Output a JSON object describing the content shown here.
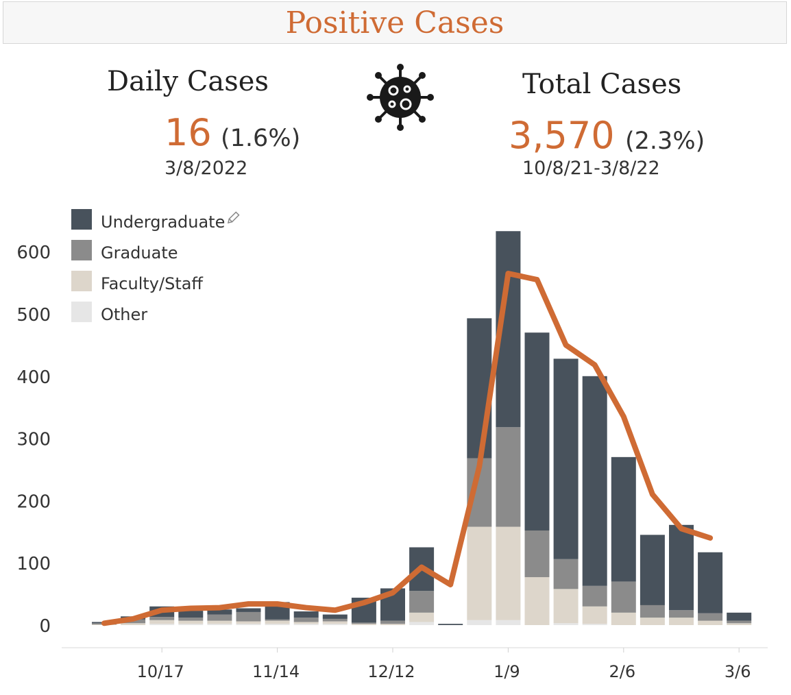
{
  "header": {
    "title": "Positive Cases"
  },
  "daily": {
    "title": "Daily Cases",
    "value": "16",
    "pct": "(1.6%)",
    "date": "3/8/2022"
  },
  "total": {
    "title": "Total Cases",
    "value": "3,570",
    "pct": "(2.3%)",
    "date": "10/8/21-3/8/22"
  },
  "icons": {
    "virus": "virus-icon",
    "edit": "pencil-icon"
  },
  "colors": {
    "undergraduate": "#48525c",
    "graduate": "#8b8b8b",
    "faculty_staff": "#ddd6cb",
    "other": "#e6e6e6",
    "trend": "#cf6b34",
    "title": "#cf6b34"
  },
  "chart_data": {
    "type": "bar",
    "stacked": true,
    "x_tick_labels": [
      "10/17",
      "11/14",
      "12/12",
      "1/9",
      "2/6",
      "3/6"
    ],
    "y_ticks": [
      0,
      100,
      200,
      300,
      400,
      500,
      600
    ],
    "ylim": [
      0,
      650
    ],
    "grid": false,
    "legend_position": "top-left",
    "categories": [
      "10/3",
      "10/10",
      "10/17",
      "10/24",
      "10/31",
      "11/7",
      "11/14",
      "11/21",
      "11/28",
      "12/5",
      "12/12",
      "12/19",
      "12/26",
      "1/2",
      "1/9",
      "1/16",
      "1/23",
      "1/30",
      "2/6",
      "2/13",
      "2/20",
      "2/27",
      "3/6"
    ],
    "series": [
      {
        "name": "Other",
        "values": [
          0,
          0,
          2,
          2,
          2,
          2,
          2,
          2,
          2,
          0,
          0,
          5,
          0,
          8,
          8,
          0,
          3,
          2,
          0,
          0,
          0,
          0,
          0
        ]
      },
      {
        "name": "Faculty/Staff",
        "values": [
          1,
          3,
          6,
          5,
          5,
          4,
          5,
          3,
          4,
          2,
          2,
          15,
          0,
          150,
          150,
          77,
          55,
          28,
          20,
          12,
          12,
          7,
          3
        ]
      },
      {
        "name": "Graduate",
        "values": [
          2,
          6,
          5,
          5,
          10,
          15,
          2,
          7,
          4,
          2,
          5,
          35,
          0,
          110,
          160,
          75,
          48,
          33,
          50,
          20,
          12,
          12,
          4
        ]
      },
      {
        "name": "Undergraduate",
        "values": [
          2,
          5,
          17,
          11,
          8,
          6,
          28,
          10,
          7,
          40,
          52,
          70,
          2,
          225,
          315,
          318,
          322,
          337,
          200,
          113,
          137,
          98,
          13
        ]
      }
    ],
    "trend_line": {
      "x": [
        "10/3",
        "10/10",
        "10/17",
        "10/24",
        "10/31",
        "11/7",
        "11/14",
        "11/21",
        "11/28",
        "12/5",
        "12/12",
        "12/19",
        "12/26",
        "1/2",
        "1/9",
        "1/16",
        "1/23",
        "1/30",
        "2/6",
        "2/13",
        "2/20",
        "2/27"
      ],
      "values": [
        3,
        10,
        24,
        27,
        28,
        34,
        34,
        28,
        24,
        36,
        52,
        93,
        65,
        255,
        565,
        555,
        450,
        418,
        335,
        210,
        155,
        140
      ]
    }
  }
}
